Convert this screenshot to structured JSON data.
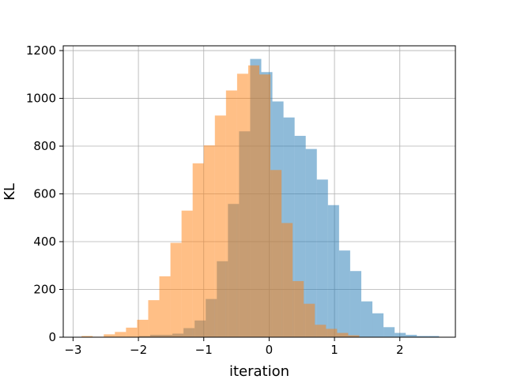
{
  "chart_data": {
    "type": "histogram",
    "xlabel": "iteration",
    "ylabel": "KL",
    "xlim": [
      -3.15,
      2.85
    ],
    "ylim": [
      0,
      1220
    ],
    "xticks": [
      -3,
      -2,
      -1,
      0,
      1,
      2
    ],
    "xtick_labels": [
      "−3",
      "−2",
      "−1",
      "0",
      "1",
      "2"
    ],
    "yticks": [
      0,
      200,
      400,
      600,
      800,
      1000,
      1200
    ],
    "ytick_labels": [
      "0",
      "200",
      "400",
      "600",
      "800",
      "1000",
      "1200"
    ],
    "grid": true,
    "series": [
      {
        "color": "#1f77b4",
        "alpha": 0.5,
        "bins": [
          [
            -1.99,
            -1.82,
            5
          ],
          [
            -1.82,
            -1.65,
            10
          ],
          [
            -1.65,
            -1.48,
            10
          ],
          [
            -1.48,
            -1.31,
            15
          ],
          [
            -1.31,
            -1.14,
            38
          ],
          [
            -1.14,
            -0.97,
            70
          ],
          [
            -0.97,
            -0.8,
            160
          ],
          [
            -0.8,
            -0.63,
            318
          ],
          [
            -0.63,
            -0.46,
            558
          ],
          [
            -0.46,
            -0.29,
            862
          ],
          [
            -0.29,
            -0.12,
            1165
          ],
          [
            -0.12,
            0.05,
            1110
          ],
          [
            0.05,
            0.22,
            987
          ],
          [
            0.22,
            0.39,
            920
          ],
          [
            0.39,
            0.56,
            843
          ],
          [
            0.56,
            0.73,
            788
          ],
          [
            0.73,
            0.9,
            660
          ],
          [
            0.9,
            1.07,
            553
          ],
          [
            1.07,
            1.24,
            363
          ],
          [
            1.24,
            1.41,
            277
          ],
          [
            1.41,
            1.58,
            150
          ],
          [
            1.58,
            1.75,
            100
          ],
          [
            1.75,
            1.92,
            42
          ],
          [
            1.92,
            2.09,
            18
          ],
          [
            2.09,
            2.26,
            10
          ],
          [
            2.26,
            2.43,
            5
          ],
          [
            2.43,
            2.6,
            5
          ]
        ]
      },
      {
        "color": "#ff7f0e",
        "alpha": 0.5,
        "bins": [
          [
            -2.87,
            -2.7,
            5
          ],
          [
            -2.7,
            -2.53,
            2
          ],
          [
            -2.53,
            -2.36,
            12
          ],
          [
            -2.36,
            -2.19,
            22
          ],
          [
            -2.19,
            -2.02,
            40
          ],
          [
            -2.02,
            -1.85,
            73
          ],
          [
            -1.85,
            -1.68,
            155
          ],
          [
            -1.68,
            -1.51,
            255
          ],
          [
            -1.51,
            -1.34,
            395
          ],
          [
            -1.34,
            -1.17,
            530
          ],
          [
            -1.17,
            -1.0,
            728
          ],
          [
            -1.0,
            -0.83,
            803
          ],
          [
            -0.83,
            -0.66,
            928
          ],
          [
            -0.66,
            -0.49,
            1033
          ],
          [
            -0.49,
            -0.32,
            1103
          ],
          [
            -0.32,
            -0.15,
            1138
          ],
          [
            -0.15,
            0.02,
            1100
          ],
          [
            0.02,
            0.19,
            700
          ],
          [
            0.19,
            0.36,
            478
          ],
          [
            0.36,
            0.53,
            235
          ],
          [
            0.53,
            0.7,
            140
          ],
          [
            0.7,
            0.87,
            52
          ],
          [
            0.87,
            1.04,
            35
          ],
          [
            1.04,
            1.21,
            18
          ],
          [
            1.21,
            1.38,
            8
          ]
        ]
      }
    ]
  }
}
